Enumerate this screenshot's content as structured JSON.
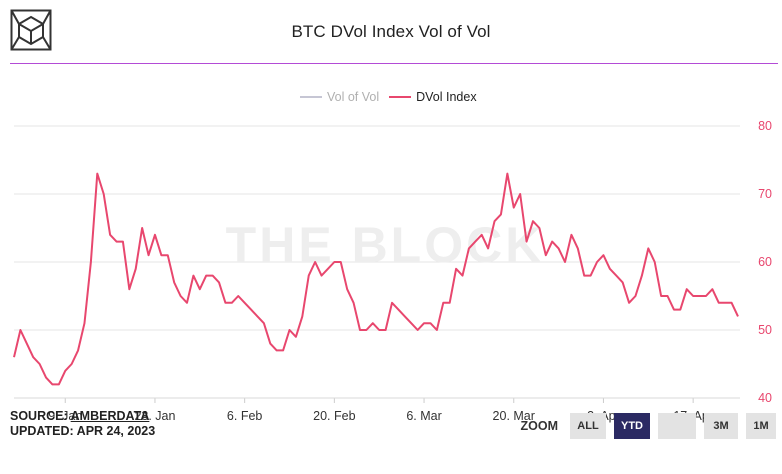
{
  "header": {
    "title": "BTC DVol Index Vol of Vol"
  },
  "legend": [
    {
      "name": "Vol of Vol",
      "color": "#c6c6d4",
      "visible": false
    },
    {
      "name": "DVol Index",
      "color": "#e8476e",
      "visible": true
    }
  ],
  "footer": {
    "source_prefix": "SOURCE: ",
    "source_link": "AMBERDATA",
    "updated": "UPDATED: APR 24, 2023"
  },
  "zoom": {
    "label": "ZOOM",
    "buttons": [
      "ALL",
      "YTD",
      "",
      "3M",
      "1M"
    ],
    "selected": "YTD"
  },
  "watermark": "THE BLOCK",
  "colors": {
    "series": "#e8476e",
    "accent_rule": "#b34bd6",
    "zoom_active": "#2b2a63"
  },
  "chart_data": {
    "type": "line",
    "title": "BTC DVol Index Vol of Vol",
    "x_range": [
      "2023-01-01",
      "2023-04-24"
    ],
    "x_ticks": [
      "9. Jan",
      "23. Jan",
      "6. Feb",
      "20. Feb",
      "6. Mar",
      "20. Mar",
      "3. Apr",
      "17. Apr"
    ],
    "x_tick_dates": [
      "2023-01-09",
      "2023-01-23",
      "2023-02-06",
      "2023-02-20",
      "2023-03-06",
      "2023-03-20",
      "2023-04-03",
      "2023-04-17"
    ],
    "y_axis": {
      "position": "right",
      "min": 40,
      "max": 80,
      "ticks": [
        40,
        50,
        60,
        70,
        80
      ]
    },
    "grid": true,
    "legend_position": "top-center",
    "series": [
      {
        "name": "DVol Index",
        "color": "#e8476e",
        "points": [
          [
            "2023-01-01",
            46
          ],
          [
            "2023-01-02",
            50
          ],
          [
            "2023-01-03",
            48
          ],
          [
            "2023-01-04",
            46
          ],
          [
            "2023-01-05",
            45
          ],
          [
            "2023-01-06",
            43
          ],
          [
            "2023-01-07",
            42
          ],
          [
            "2023-01-08",
            42
          ],
          [
            "2023-01-09",
            44
          ],
          [
            "2023-01-10",
            45
          ],
          [
            "2023-01-11",
            47
          ],
          [
            "2023-01-12",
            51
          ],
          [
            "2023-01-13",
            60
          ],
          [
            "2023-01-14",
            73
          ],
          [
            "2023-01-15",
            70
          ],
          [
            "2023-01-16",
            64
          ],
          [
            "2023-01-17",
            63
          ],
          [
            "2023-01-18",
            63
          ],
          [
            "2023-01-19",
            56
          ],
          [
            "2023-01-20",
            59
          ],
          [
            "2023-01-21",
            65
          ],
          [
            "2023-01-22",
            61
          ],
          [
            "2023-01-23",
            64
          ],
          [
            "2023-01-24",
            61
          ],
          [
            "2023-01-25",
            61
          ],
          [
            "2023-01-26",
            57
          ],
          [
            "2023-01-27",
            55
          ],
          [
            "2023-01-28",
            54
          ],
          [
            "2023-01-29",
            58
          ],
          [
            "2023-01-30",
            56
          ],
          [
            "2023-01-31",
            58
          ],
          [
            "2023-02-01",
            58
          ],
          [
            "2023-02-02",
            57
          ],
          [
            "2023-02-03",
            54
          ],
          [
            "2023-02-04",
            54
          ],
          [
            "2023-02-05",
            55
          ],
          [
            "2023-02-06",
            54
          ],
          [
            "2023-02-07",
            53
          ],
          [
            "2023-02-08",
            52
          ],
          [
            "2023-02-09",
            51
          ],
          [
            "2023-02-10",
            48
          ],
          [
            "2023-02-11",
            47
          ],
          [
            "2023-02-12",
            47
          ],
          [
            "2023-02-13",
            50
          ],
          [
            "2023-02-14",
            49
          ],
          [
            "2023-02-15",
            52
          ],
          [
            "2023-02-16",
            58
          ],
          [
            "2023-02-17",
            60
          ],
          [
            "2023-02-18",
            58
          ],
          [
            "2023-02-19",
            59
          ],
          [
            "2023-02-20",
            60
          ],
          [
            "2023-02-21",
            60
          ],
          [
            "2023-02-22",
            56
          ],
          [
            "2023-02-23",
            54
          ],
          [
            "2023-02-24",
            50
          ],
          [
            "2023-02-25",
            50
          ],
          [
            "2023-02-26",
            51
          ],
          [
            "2023-02-27",
            50
          ],
          [
            "2023-02-28",
            50
          ],
          [
            "2023-03-01",
            54
          ],
          [
            "2023-03-02",
            53
          ],
          [
            "2023-03-03",
            52
          ],
          [
            "2023-03-04",
            51
          ],
          [
            "2023-03-05",
            50
          ],
          [
            "2023-03-06",
            51
          ],
          [
            "2023-03-07",
            51
          ],
          [
            "2023-03-08",
            50
          ],
          [
            "2023-03-09",
            54
          ],
          [
            "2023-03-10",
            54
          ],
          [
            "2023-03-11",
            59
          ],
          [
            "2023-03-12",
            58
          ],
          [
            "2023-03-13",
            62
          ],
          [
            "2023-03-14",
            63
          ],
          [
            "2023-03-15",
            64
          ],
          [
            "2023-03-16",
            62
          ],
          [
            "2023-03-17",
            66
          ],
          [
            "2023-03-18",
            67
          ],
          [
            "2023-03-19",
            73
          ],
          [
            "2023-03-20",
            68
          ],
          [
            "2023-03-21",
            70
          ],
          [
            "2023-03-22",
            63
          ],
          [
            "2023-03-23",
            66
          ],
          [
            "2023-03-24",
            65
          ],
          [
            "2023-03-25",
            61
          ],
          [
            "2023-03-26",
            63
          ],
          [
            "2023-03-27",
            62
          ],
          [
            "2023-03-28",
            60
          ],
          [
            "2023-03-29",
            64
          ],
          [
            "2023-03-30",
            62
          ],
          [
            "2023-03-31",
            58
          ],
          [
            "2023-04-01",
            58
          ],
          [
            "2023-04-02",
            60
          ],
          [
            "2023-04-03",
            61
          ],
          [
            "2023-04-04",
            59
          ],
          [
            "2023-04-05",
            58
          ],
          [
            "2023-04-06",
            57
          ],
          [
            "2023-04-07",
            54
          ],
          [
            "2023-04-08",
            55
          ],
          [
            "2023-04-09",
            58
          ],
          [
            "2023-04-10",
            62
          ],
          [
            "2023-04-11",
            60
          ],
          [
            "2023-04-12",
            55
          ],
          [
            "2023-04-13",
            55
          ],
          [
            "2023-04-14",
            53
          ],
          [
            "2023-04-15",
            53
          ],
          [
            "2023-04-16",
            56
          ],
          [
            "2023-04-17",
            55
          ],
          [
            "2023-04-18",
            55
          ],
          [
            "2023-04-19",
            55
          ],
          [
            "2023-04-20",
            56
          ],
          [
            "2023-04-21",
            54
          ],
          [
            "2023-04-22",
            54
          ],
          [
            "2023-04-23",
            54
          ],
          [
            "2023-04-24",
            52
          ]
        ]
      }
    ]
  }
}
